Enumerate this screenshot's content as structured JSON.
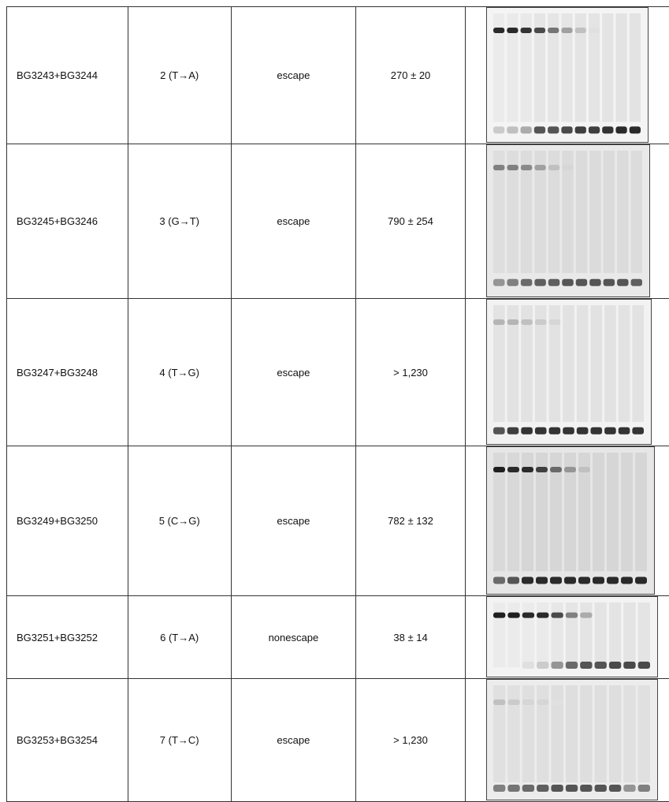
{
  "table": {
    "rows": [
      [
        "BG3243+BG3244",
        "2 (T→A)",
        "escape",
        "270 ± 20"
      ],
      [
        "BG3245+BG3246",
        "3 (G→T)",
        "escape",
        "790 ± 254"
      ],
      [
        "BG3247+BG3248",
        "4 (T→G)",
        "escape",
        "> 1,230"
      ],
      [
        "BG3249+BG3250",
        "5 (C→G)",
        "escape",
        "782 ± 132"
      ],
      [
        "BG3251+BG3252",
        "6 (T→A)",
        "nonescape",
        "38 ± 14"
      ],
      [
        "BG3253+BG3254",
        "7 (T→C)",
        "escape",
        "> 1,230"
      ]
    ]
  }
}
